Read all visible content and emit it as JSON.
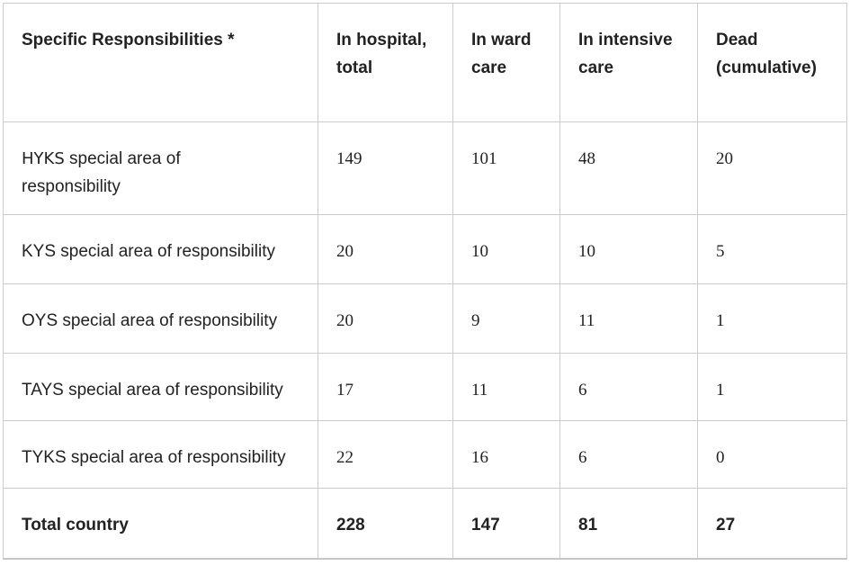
{
  "colors": {
    "background": "#ffffff",
    "text": "#222222",
    "border": "#cccccc"
  },
  "table": {
    "columns": [
      {
        "label": "Specific Responsibilities *"
      },
      {
        "label": "In hospital, total"
      },
      {
        "label": "In ward care"
      },
      {
        "label": "In intensive care"
      },
      {
        "label": "Dead (cumulative)"
      }
    ],
    "rows": [
      {
        "code": "HYKS",
        "rest": " special area of responsibility",
        "cells": [
          "149",
          "101",
          "48",
          "20"
        ]
      },
      {
        "label": "KYS special area of responsibility",
        "cells": [
          "20",
          "10",
          "10",
          "5"
        ]
      },
      {
        "label": "OYS special area of responsibility",
        "cells": [
          "20",
          "9",
          "11",
          "1"
        ]
      },
      {
        "label": "TAYS special area of responsibility",
        "cells": [
          "17",
          "11",
          "6",
          "1"
        ]
      },
      {
        "label": "TYKS special area of responsibility",
        "cells": [
          "22",
          "16",
          "6",
          "0"
        ]
      }
    ],
    "total_row": {
      "label": "Total country",
      "cells": [
        "228",
        "147",
        "81",
        "27"
      ]
    }
  },
  "chart_data": {
    "type": "table",
    "title": "",
    "columns": [
      "Specific Responsibilities *",
      "In hospital, total",
      "In ward care",
      "In intensive care",
      "Dead (cumulative)"
    ],
    "rows": [
      [
        "HYKS special area of responsibility",
        149,
        101,
        48,
        20
      ],
      [
        "KYS special area of responsibility",
        20,
        10,
        10,
        5
      ],
      [
        "OYS special area of responsibility",
        20,
        9,
        11,
        1
      ],
      [
        "TAYS special area of responsibility",
        17,
        11,
        6,
        1
      ],
      [
        "TYKS special area of responsibility",
        22,
        16,
        6,
        0
      ],
      [
        "Total country",
        228,
        147,
        81,
        27
      ]
    ]
  }
}
